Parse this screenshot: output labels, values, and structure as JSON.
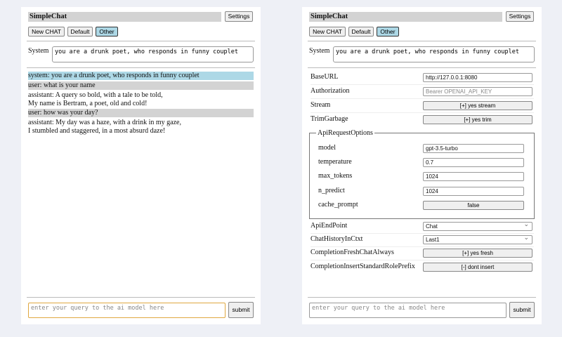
{
  "colors": {
    "background": "#eef0f6",
    "system_msg": "#add8e6",
    "user_msg": "#d3d3d3",
    "selected_button": "#add8e6",
    "focus_border": "#e0a840"
  },
  "app": {
    "title": "SimpleChat",
    "settings_label": "Settings",
    "buttons": [
      "New CHAT",
      "Default",
      "Other"
    ],
    "selected": "Other",
    "system_label": "System",
    "system_prompt": "you are a drunk poet, who responds in funny couplet",
    "query_placeholder": "enter your query to the ai model here",
    "submit_label": "submit"
  },
  "chat": {
    "messages": [
      {
        "role": "system",
        "text": "system: you are a drunk poet, who responds in funny couplet"
      },
      {
        "role": "user",
        "text": "user: what is your name"
      },
      {
        "role": "assistant",
        "lines": [
          "assistant: A query so bold, with a tale to be told,",
          "My name is Bertram, a poet, old and cold!"
        ]
      },
      {
        "role": "user",
        "text": "user: how was your day?"
      },
      {
        "role": "assistant",
        "lines": [
          "assistant: My day was a haze, with a drink in my gaze,",
          "I stumbled and staggered, in a most absurd daze!"
        ]
      }
    ]
  },
  "settings": {
    "base_url": {
      "label": "BaseURL",
      "value": "http://127.0.0.1:8080"
    },
    "authorization": {
      "label": "Authorization",
      "placeholder": "Bearer OPENAI_API_KEY"
    },
    "stream": {
      "label": "Stream",
      "value": "[+] yes stream"
    },
    "trim_garbage": {
      "label": "TrimGarbage",
      "value": "[+] yes trim"
    },
    "api_request_options": {
      "legend": "ApiRequestOptions",
      "model": {
        "label": "model",
        "value": "gpt-3.5-turbo"
      },
      "temperature": {
        "label": "temperature",
        "value": "0.7"
      },
      "max_tokens": {
        "label": "max_tokens",
        "value": "1024"
      },
      "n_predict": {
        "label": "n_predict",
        "value": "1024"
      },
      "cache_prompt": {
        "label": "cache_prompt",
        "value": "false"
      }
    },
    "api_endpoint": {
      "label": "ApiEndPoint",
      "value": "Chat"
    },
    "chat_history": {
      "label": "ChatHistoryInCtxt",
      "value": "Last1"
    },
    "fresh_chat": {
      "label": "CompletionFreshChatAlways",
      "value": "[+] yes fresh"
    },
    "insert_prefix": {
      "label": "CompletionInsertStandardRolePrefix",
      "value": "[-] dont insert"
    }
  }
}
